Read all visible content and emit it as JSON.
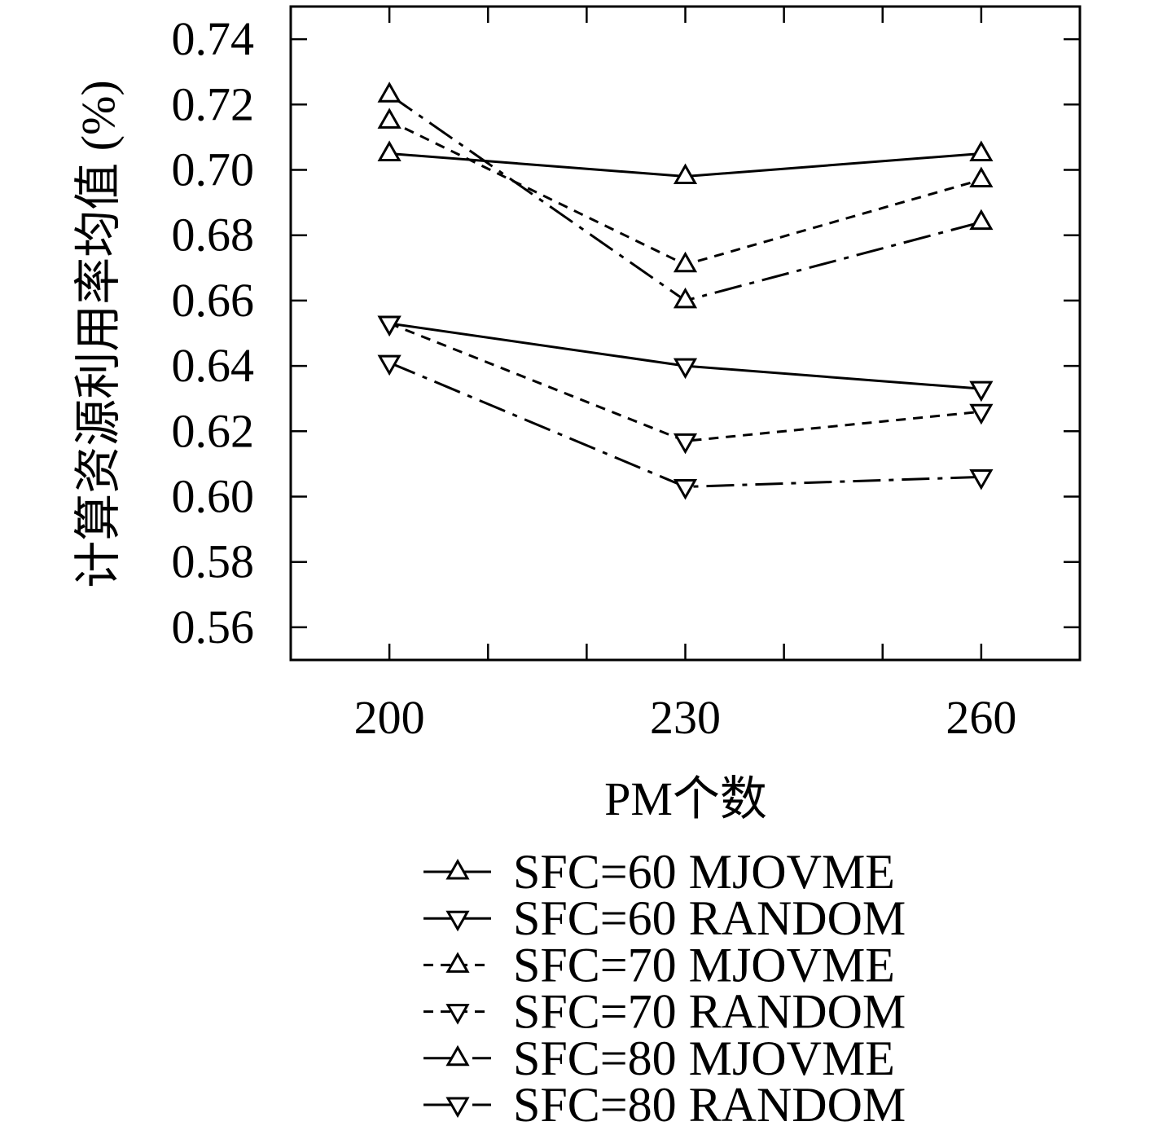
{
  "chart_data": {
    "type": "line",
    "xlabel": "PM个数",
    "ylabel": "计算资源利用率均值 (%)",
    "xlim": [
      190,
      270
    ],
    "ylim": [
      0.55,
      0.75
    ],
    "x": [
      200,
      230,
      260
    ],
    "x_ticks": [
      200,
      210,
      220,
      230,
      240,
      250,
      260
    ],
    "x_tick_labels": [
      "200",
      "230",
      "260"
    ],
    "y_tick_labels": [
      "0.56",
      "0.58",
      "0.60",
      "0.62",
      "0.64",
      "0.66",
      "0.68",
      "0.70",
      "0.72",
      "0.74"
    ],
    "grid": false,
    "legend_position": "bottom",
    "line_color": "#000000",
    "series": [
      {
        "name": "SFC=60 MJOVME",
        "values": [
          0.705,
          0.698,
          0.705
        ],
        "line_style": "solid",
        "marker": "triangle-up"
      },
      {
        "name": "SFC=60 RANDOM",
        "values": [
          0.653,
          0.64,
          0.633
        ],
        "line_style": "solid",
        "marker": "triangle-down"
      },
      {
        "name": "SFC=70 MJOVME",
        "values": [
          0.715,
          0.671,
          0.697
        ],
        "line_style": "dashed",
        "marker": "triangle-up"
      },
      {
        "name": "SFC=70 RANDOM",
        "values": [
          0.653,
          0.617,
          0.626
        ],
        "line_style": "dashed",
        "marker": "triangle-down"
      },
      {
        "name": "SFC=80 MJOVME",
        "values": [
          0.723,
          0.66,
          0.684
        ],
        "line_style": "dash-dot",
        "marker": "triangle-up"
      },
      {
        "name": "SFC=80 RANDOM",
        "values": [
          0.641,
          0.603,
          0.606
        ],
        "line_style": "dash-dot",
        "marker": "triangle-down"
      }
    ]
  }
}
